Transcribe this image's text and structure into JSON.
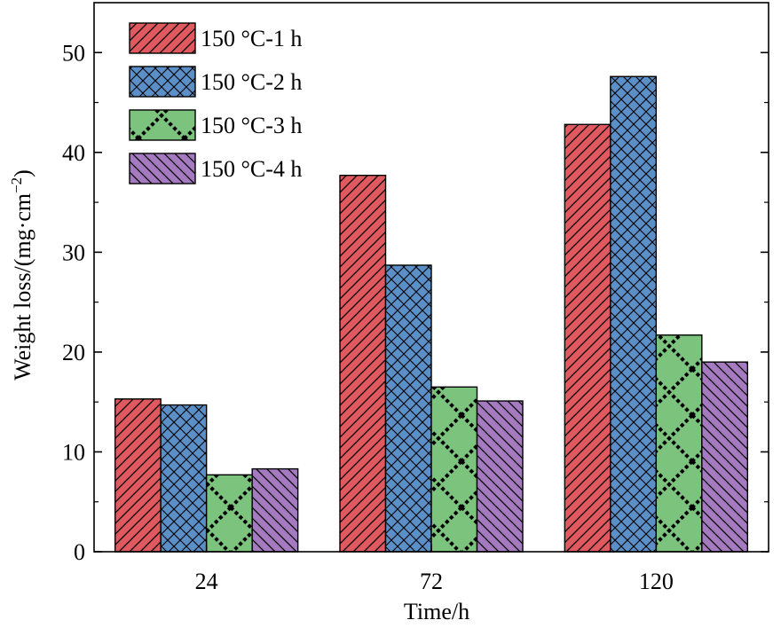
{
  "chart_data": {
    "type": "bar",
    "xlabel": "Time/h",
    "ylabel": "Weight loss/(mg·cm",
    "ylabel_sup": "−2",
    "ylabel_suffix": ")",
    "ylim": [
      0,
      55
    ],
    "yticks": [
      0,
      10,
      20,
      30,
      40,
      50
    ],
    "categories": [
      "24",
      "72",
      "120"
    ],
    "legend_position": "top-left",
    "grid": false,
    "series": [
      {
        "name": "150 °C-1 h",
        "values": [
          15.3,
          37.7,
          42.8
        ],
        "color": "#e0595e",
        "pattern": "diagonal"
      },
      {
        "name": "150 °C-2 h",
        "values": [
          14.7,
          28.7,
          47.6
        ],
        "color": "#5b8fc7",
        "pattern": "crosshatch"
      },
      {
        "name": "150 °C-3 h",
        "values": [
          7.7,
          16.5,
          21.7
        ],
        "color": "#7cc47e",
        "pattern": "lattice"
      },
      {
        "name": "150 °C-4 h",
        "values": [
          8.3,
          15.1,
          19.0
        ],
        "color": "#a57ac0",
        "pattern": "backdiagonal"
      }
    ]
  }
}
